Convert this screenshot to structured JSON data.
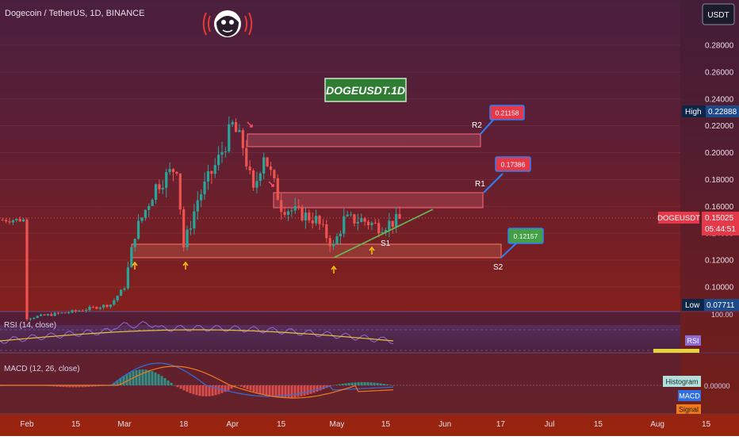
{
  "header": {
    "symbol_title": "Dogecoin / TetherUS, 1D, BINANCE",
    "currency_button": "USDT"
  },
  "watermark_label": "DOGEUSDT.1D",
  "price_axis": {
    "ticks": [
      "0.28000",
      "0.26000",
      "0.24000",
      "0.22000",
      "0.20000",
      "0.18000",
      "0.16000",
      "0.14000",
      "0.12000",
      "0.10000"
    ],
    "high_label": "High",
    "high_value": "0.22888",
    "low_label": "Low",
    "low_value": "0.07711",
    "symbol_tag": "DOGEUSDT",
    "last_price": "0.15025",
    "countdown": "05:44:51"
  },
  "time_axis": {
    "ticks": [
      "Feb",
      "15",
      "Mar",
      "18",
      "Apr",
      "15",
      "May",
      "15",
      "Jun",
      "17",
      "Jul",
      "15",
      "Aug",
      "15"
    ]
  },
  "annotations": {
    "r2_label": "R2",
    "r2_value": "0.21158",
    "r1_label": "R1",
    "r1_value": "0.17386",
    "s1_label": "S1",
    "s2_label": "S2",
    "s2_value": "0.12157"
  },
  "rsi_panel": {
    "title": "RSI (14, close)",
    "level_100": "100.00",
    "tag": "RSI"
  },
  "macd_panel": {
    "title": "MACD (12, 26, close)",
    "zero": "0.00000",
    "histogram_tag": "Histogram",
    "macd_tag": "MACD",
    "signal_tag": "Signal"
  },
  "colors": {
    "up": "#26a69a",
    "down": "#ef5350",
    "trend": "#66bb55",
    "rsi": "#8e6bd1",
    "rsi_ma": "#e8c23a",
    "macd": "#2f6fe0",
    "signal": "#f07a1a",
    "label_red": "#e5394a",
    "label_green": "#43a047"
  },
  "chart_data": {
    "type": "candlestick",
    "symbol": "DOGEUSDT",
    "interval": "1D",
    "exchange": "BINANCE",
    "y_range": [
      0.075,
      0.29
    ],
    "x_range": [
      "2021-01-25",
      "2021-08-20"
    ],
    "y_ticks": [
      0.28,
      0.26,
      0.24,
      0.22,
      0.2,
      0.18,
      0.16,
      0.14,
      0.12,
      0.1
    ],
    "high": 0.22888,
    "low": 0.07711,
    "last": 0.15025,
    "candles_end": "2021-05-19",
    "approx_close_path": [
      {
        "date": "2021-02-01",
        "close": 0.077
      },
      {
        "date": "2021-02-15",
        "close": 0.082
      },
      {
        "date": "2021-02-25",
        "close": 0.087
      },
      {
        "date": "2021-03-01",
        "close": 0.1
      },
      {
        "date": "2021-03-04",
        "close": 0.14
      },
      {
        "date": "2021-03-10",
        "close": 0.175
      },
      {
        "date": "2021-03-16",
        "close": 0.19
      },
      {
        "date": "2021-03-18",
        "close": 0.13
      },
      {
        "date": "2021-03-22",
        "close": 0.165
      },
      {
        "date": "2021-03-28",
        "close": 0.195
      },
      {
        "date": "2021-04-01",
        "close": 0.22
      },
      {
        "date": "2021-04-04",
        "close": 0.205
      },
      {
        "date": "2021-04-07",
        "close": 0.17
      },
      {
        "date": "2021-04-10",
        "close": 0.2
      },
      {
        "date": "2021-04-15",
        "close": 0.16
      },
      {
        "date": "2021-04-20",
        "close": 0.155
      },
      {
        "date": "2021-04-25",
        "close": 0.15
      },
      {
        "date": "2021-04-30",
        "close": 0.13
      },
      {
        "date": "2021-05-03",
        "close": 0.15
      },
      {
        "date": "2021-05-08",
        "close": 0.15
      },
      {
        "date": "2021-05-13",
        "close": 0.145
      },
      {
        "date": "2021-05-19",
        "close": 0.15
      }
    ],
    "zones": [
      {
        "name": "R2",
        "from": 0.2065,
        "to": 0.2105,
        "value": 0.21158,
        "start": "2021-04-06",
        "end": "2021-06-13"
      },
      {
        "name": "R1",
        "from": 0.158,
        "to": 0.169,
        "value": 0.17386,
        "start": "2021-04-11",
        "end": "2021-06-14"
      },
      {
        "name": "S2",
        "from": 0.1205,
        "to": 0.1305,
        "value": 0.12157,
        "start": "2021-03-01",
        "end": "2021-06-12"
      }
    ],
    "trendline": [
      {
        "date": "2021-05-01",
        "price": 0.121
      },
      {
        "date": "2021-05-26",
        "price": 0.1585
      }
    ],
    "marker_dates": [
      "2021-03-02",
      "2021-03-18",
      "2021-05-02",
      "2021-05-13"
    ],
    "indicators": [
      {
        "name": "RSI (14, close)",
        "level": 100.0
      },
      {
        "name": "MACD (12, 26, close)",
        "zero": 0.0
      }
    ]
  }
}
